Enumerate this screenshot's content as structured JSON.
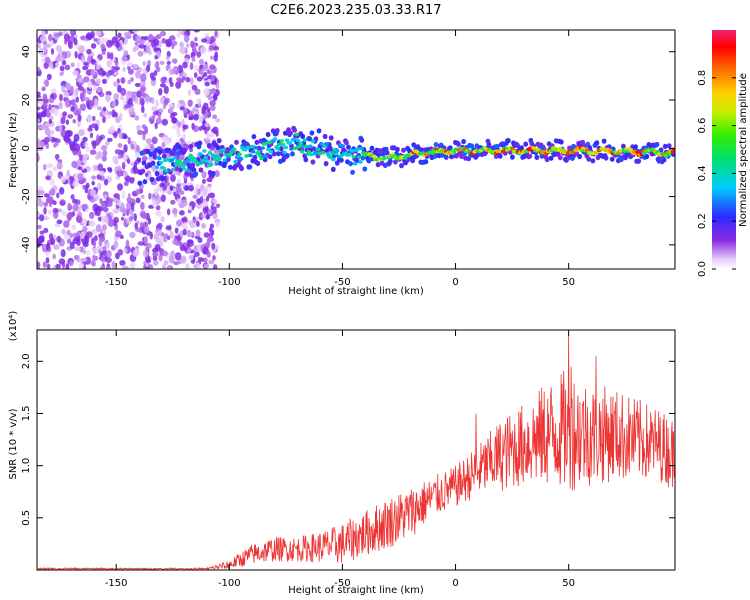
{
  "figure": {
    "title": "C2E6.2023.235.03.33.R17"
  },
  "chart_data": [
    {
      "type": "heatmap",
      "xlabel": "Height of straight line (km)",
      "ylabel": "Frequency (Hz)",
      "xlim": [
        -185,
        97
      ],
      "ylim": [
        -50,
        49
      ],
      "x_ticks": [
        -150,
        -100,
        -50,
        0,
        50
      ],
      "y_ticks": [
        -40,
        -20,
        0,
        20,
        40
      ],
      "colorbar": {
        "label": "Normalized spectral amplitude",
        "range": [
          0,
          1
        ],
        "ticks": [
          0.0,
          0.2,
          0.4,
          0.6,
          0.8
        ],
        "colormap": "rainbow (white-violet-blue-cyan-green-yellow-orange-red-magenta)"
      },
      "features": [
        {
          "name": "noise",
          "x_range": [
            -185,
            -105
          ],
          "freq_range": [
            -50,
            49
          ],
          "amplitude": "0.1-0.3"
        },
        {
          "name": "trace",
          "x": [
            -130,
            -100,
            -70,
            -50,
            -30,
            -15,
            0,
            30,
            60,
            97
          ],
          "freq": [
            -7,
            -3,
            2,
            -2,
            -4,
            -2,
            -1,
            -1,
            -1,
            -2
          ],
          "peak_amplitude": 1.0
        }
      ],
      "grid": false
    },
    {
      "type": "line",
      "xlabel": "Height of straight line (km)",
      "ylabel": "SNR (10 * v/v)",
      "y_multiplier": "(x10⁴)",
      "xlim": [
        -185,
        97
      ],
      "ylim": [
        0,
        2.3
      ],
      "x_ticks": [
        -150,
        -100,
        -50,
        0,
        50
      ],
      "y_ticks": [
        0.5,
        1.0,
        1.5,
        2.0
      ],
      "line_color": "#ee3333",
      "envelope_x": [
        -185,
        -110,
        -100,
        -90,
        -80,
        -70,
        -60,
        -50,
        -40,
        -30,
        -20,
        -10,
        0,
        10,
        20,
        30,
        40,
        50,
        60,
        70,
        80,
        90,
        97
      ],
      "envelope_mean": [
        0.01,
        0.01,
        0.05,
        0.15,
        0.2,
        0.2,
        0.22,
        0.25,
        0.35,
        0.45,
        0.55,
        0.7,
        0.8,
        0.95,
        1.1,
        1.2,
        1.3,
        1.35,
        1.3,
        1.3,
        1.25,
        1.2,
        1.1
      ],
      "envelope_amplitude": [
        0.01,
        0.01,
        0.05,
        0.1,
        0.12,
        0.12,
        0.15,
        0.2,
        0.22,
        0.25,
        0.25,
        0.2,
        0.2,
        0.25,
        0.35,
        0.4,
        0.5,
        0.6,
        0.5,
        0.45,
        0.4,
        0.35,
        0.35
      ],
      "peaks": [
        {
          "x": 50,
          "y": 2.25
        },
        {
          "x": 62,
          "y": 2.05
        },
        {
          "x": 51,
          "y": 1.95
        },
        {
          "x": 9,
          "y": 1.5
        }
      ],
      "grid": false
    }
  ]
}
